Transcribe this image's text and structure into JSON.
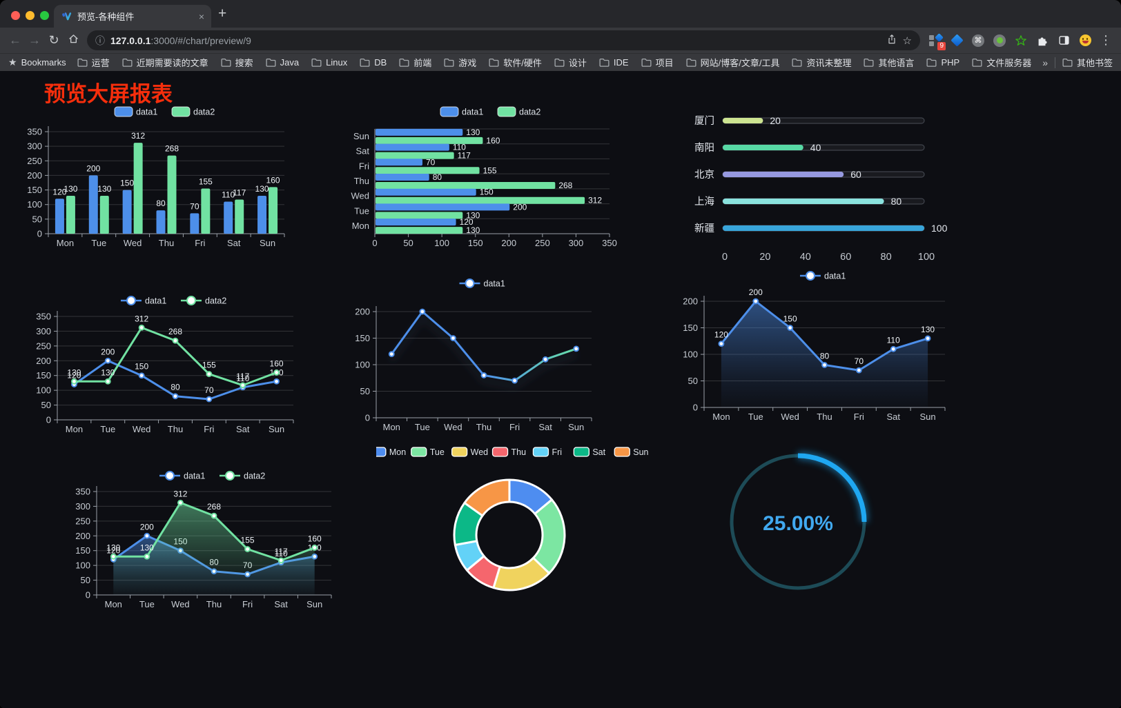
{
  "browser": {
    "traffic_lights": [
      "#ff5f57",
      "#febc2e",
      "#28c840"
    ],
    "tab": {
      "title": "预览-各种组件"
    },
    "icons": {
      "close": "×",
      "new_tab": "+",
      "back": "←",
      "forward": "→",
      "reload": "↻",
      "info": "ⓘ",
      "star": "☆",
      "bookmarks_star": "★",
      "menu": "⋮",
      "overflow": "»",
      "cmd": "⌘"
    },
    "url": {
      "host": "127.0.0.1",
      "rest": ":3000/#/chart/preview/9"
    },
    "extension_badge": "9",
    "bookmarks": {
      "label": "Bookmarks",
      "items": [
        "运营",
        "近期需要读的文章",
        "搜索",
        "Java",
        "Linux",
        "DB",
        "前端",
        "游戏",
        "软件/硬件",
        "设计",
        "IDE",
        "项目",
        "网站/博客/文章/工具",
        "资讯未整理",
        "其他语言",
        "PHP",
        "文件服务器"
      ],
      "other": "其他书签"
    }
  },
  "page": {
    "title": "预览大屏报表",
    "title_color": "#f62e0c",
    "background": "#0d0e13"
  },
  "chart_data": [
    {
      "type": "bar",
      "legend": "rect",
      "labels": true,
      "categories": [
        "Mon",
        "Tue",
        "Wed",
        "Thu",
        "Fri",
        "Sat",
        "Sun"
      ],
      "series": [
        {
          "name": "data1",
          "color": "#4d8fea",
          "values": [
            120,
            200,
            150,
            80,
            70,
            110,
            130
          ]
        },
        {
          "name": "data2",
          "color": "#71e2a2",
          "values": [
            130,
            130,
            312,
            268,
            155,
            117,
            160
          ]
        }
      ],
      "ylim": [
        0,
        350
      ],
      "ytick": 50
    },
    {
      "type": "hbar",
      "legend": "rect",
      "labels": true,
      "categories": [
        "Mon",
        "Tue",
        "Wed",
        "Thu",
        "Fri",
        "Sat",
        "Sun"
      ],
      "series": [
        {
          "name": "data1",
          "color": "#4d8fea",
          "values": [
            120,
            200,
            150,
            80,
            70,
            110,
            130
          ]
        },
        {
          "name": "data2",
          "color": "#71e2a2",
          "values": [
            130,
            130,
            312,
            268,
            155,
            117,
            160
          ]
        }
      ],
      "xlim": [
        0,
        350
      ],
      "xtick": 50
    },
    {
      "type": "progress",
      "rows": [
        {
          "label": "厦门",
          "value": 20,
          "color": "#cde491"
        },
        {
          "label": "南阳",
          "value": 40,
          "color": "#57d8a4"
        },
        {
          "label": "北京",
          "value": 60,
          "color": "#9699e0"
        },
        {
          "label": "上海",
          "value": 80,
          "color": "#8ae2de"
        },
        {
          "label": "新疆",
          "value": 100,
          "color": "#38a5da"
        }
      ],
      "axis": [
        0,
        20,
        40,
        60,
        80,
        100
      ]
    },
    {
      "type": "line",
      "legend": "circle",
      "labels": true,
      "categories": [
        "Mon",
        "Tue",
        "Wed",
        "Thu",
        "Fri",
        "Sat",
        "Sun"
      ],
      "series": [
        {
          "name": "data1",
          "color": "#4d8fea",
          "values": [
            120,
            200,
            150,
            80,
            70,
            110,
            130
          ]
        },
        {
          "name": "data2",
          "color": "#71e2a2",
          "values": [
            130,
            130,
            312,
            268,
            155,
            117,
            160
          ]
        }
      ],
      "ylim": [
        0,
        350
      ],
      "ytick": 50
    },
    {
      "type": "line",
      "legend": "circle",
      "labels": false,
      "shadow": true,
      "categories": [
        "Mon",
        "Tue",
        "Wed",
        "Thu",
        "Fri",
        "Sat",
        "Sun"
      ],
      "series": [
        {
          "name": "data1",
          "color": "#4d8fea",
          "gradient": [
            "#4d8fea",
            "#4d8fea",
            "#68dfa8"
          ],
          "values": [
            120,
            200,
            150,
            80,
            70,
            110,
            130
          ]
        }
      ],
      "ylim": [
        0,
        200
      ],
      "ytick": 50
    },
    {
      "type": "line",
      "legend": "circle",
      "labels": true,
      "categories": [
        "Mon",
        "Tue",
        "Wed",
        "Thu",
        "Fri",
        "Sat",
        "Sun"
      ],
      "series": [
        {
          "name": "data1",
          "color": "#4d8fea",
          "area": true,
          "values": [
            120,
            200,
            150,
            80,
            70,
            110,
            130
          ]
        }
      ],
      "ylim": [
        0,
        200
      ],
      "ytick": 50
    },
    {
      "type": "line",
      "legend": "circle",
      "labels": true,
      "categories": [
        "Mon",
        "Tue",
        "Wed",
        "Thu",
        "Fri",
        "Sat",
        "Sun"
      ],
      "series": [
        {
          "name": "data1",
          "color": "#4d8fea",
          "area": true,
          "values": [
            120,
            200,
            150,
            80,
            70,
            110,
            130
          ]
        },
        {
          "name": "data2",
          "color": "#71e2a2",
          "area": true,
          "values": [
            130,
            130,
            312,
            268,
            155,
            117,
            160
          ]
        }
      ],
      "ylim": [
        0,
        350
      ],
      "ytick": 50
    },
    {
      "type": "pie",
      "items": [
        {
          "label": "Mon",
          "value": 120,
          "color": "#4e8df0"
        },
        {
          "label": "Tue",
          "value": 200,
          "color": "#7ce6a2"
        },
        {
          "label": "Wed",
          "value": 150,
          "color": "#f0d35e"
        },
        {
          "label": "Thu",
          "value": 80,
          "color": "#f5666d"
        },
        {
          "label": "Fri",
          "value": 70,
          "color": "#63d2f7"
        },
        {
          "label": "Sat",
          "value": 110,
          "color": "#0cb887"
        },
        {
          "label": "Sun",
          "value": 130,
          "color": "#f79646"
        }
      ]
    },
    {
      "type": "gauge",
      "value_text": "25.00%",
      "percent": 25,
      "color": "#1fa7f1",
      "track": "#1d4b57",
      "text_color": "#41a9f0"
    }
  ]
}
